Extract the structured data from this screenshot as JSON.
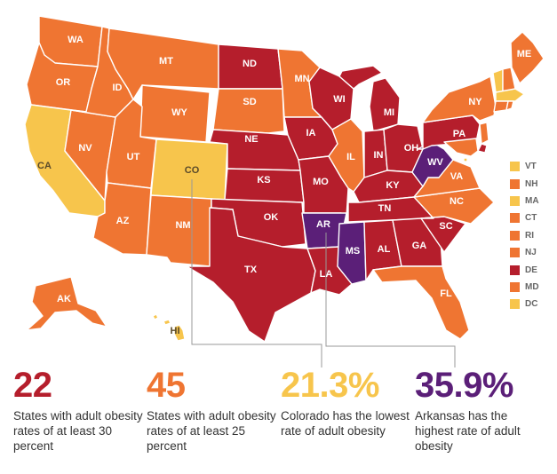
{
  "colors": {
    "tier_highest": "#5b1f78",
    "tier_30_plus": "#b51e2c",
    "tier_25_plus": "#ef7532",
    "tier_under_25": "#f7c54c",
    "connector": "#999999"
  },
  "states": [
    {
      "abbr": "WA",
      "tier": "tier_25_plus"
    },
    {
      "abbr": "OR",
      "tier": "tier_25_plus"
    },
    {
      "abbr": "CA",
      "tier": "tier_under_25"
    },
    {
      "abbr": "NV",
      "tier": "tier_25_plus"
    },
    {
      "abbr": "ID",
      "tier": "tier_25_plus"
    },
    {
      "abbr": "MT",
      "tier": "tier_25_plus"
    },
    {
      "abbr": "WY",
      "tier": "tier_25_plus"
    },
    {
      "abbr": "UT",
      "tier": "tier_25_plus"
    },
    {
      "abbr": "AZ",
      "tier": "tier_25_plus"
    },
    {
      "abbr": "CO",
      "tier": "tier_under_25"
    },
    {
      "abbr": "NM",
      "tier": "tier_25_plus"
    },
    {
      "abbr": "ND",
      "tier": "tier_30_plus"
    },
    {
      "abbr": "SD",
      "tier": "tier_25_plus"
    },
    {
      "abbr": "NE",
      "tier": "tier_30_plus"
    },
    {
      "abbr": "KS",
      "tier": "tier_30_plus"
    },
    {
      "abbr": "OK",
      "tier": "tier_30_plus"
    },
    {
      "abbr": "TX",
      "tier": "tier_30_plus"
    },
    {
      "abbr": "MN",
      "tier": "tier_25_plus"
    },
    {
      "abbr": "IA",
      "tier": "tier_30_plus"
    },
    {
      "abbr": "MO",
      "tier": "tier_30_plus"
    },
    {
      "abbr": "AR",
      "tier": "tier_highest"
    },
    {
      "abbr": "LA",
      "tier": "tier_30_plus"
    },
    {
      "abbr": "WI",
      "tier": "tier_30_plus"
    },
    {
      "abbr": "IL",
      "tier": "tier_25_plus"
    },
    {
      "abbr": "MI",
      "tier": "tier_30_plus"
    },
    {
      "abbr": "IN",
      "tier": "tier_30_plus"
    },
    {
      "abbr": "OH",
      "tier": "tier_30_plus"
    },
    {
      "abbr": "KY",
      "tier": "tier_30_plus"
    },
    {
      "abbr": "TN",
      "tier": "tier_30_plus"
    },
    {
      "abbr": "MS",
      "tier": "tier_highest"
    },
    {
      "abbr": "AL",
      "tier": "tier_30_plus"
    },
    {
      "abbr": "GA",
      "tier": "tier_30_plus"
    },
    {
      "abbr": "FL",
      "tier": "tier_25_plus"
    },
    {
      "abbr": "SC",
      "tier": "tier_30_plus"
    },
    {
      "abbr": "NC",
      "tier": "tier_25_plus"
    },
    {
      "abbr": "VA",
      "tier": "tier_25_plus"
    },
    {
      "abbr": "WV",
      "tier": "tier_highest"
    },
    {
      "abbr": "PA",
      "tier": "tier_30_plus"
    },
    {
      "abbr": "NY",
      "tier": "tier_25_plus"
    },
    {
      "abbr": "ME",
      "tier": "tier_25_plus"
    },
    {
      "abbr": "AK",
      "tier": "tier_25_plus"
    },
    {
      "abbr": "HI",
      "tier": "tier_under_25"
    }
  ],
  "legend": [
    {
      "abbr": "VT",
      "tier": "tier_under_25"
    },
    {
      "abbr": "NH",
      "tier": "tier_25_plus"
    },
    {
      "abbr": "MA",
      "tier": "tier_under_25"
    },
    {
      "abbr": "CT",
      "tier": "tier_25_plus"
    },
    {
      "abbr": "RI",
      "tier": "tier_25_plus"
    },
    {
      "abbr": "NJ",
      "tier": "tier_25_plus"
    },
    {
      "abbr": "DE",
      "tier": "tier_30_plus"
    },
    {
      "abbr": "MD",
      "tier": "tier_25_plus"
    },
    {
      "abbr": "DC",
      "tier": "tier_under_25"
    }
  ],
  "stats": [
    {
      "number": "22",
      "color": "#b51e2c",
      "text": "States with adult obesity rates of at least 30 percent"
    },
    {
      "number": "45",
      "color": "#ef7532",
      "text": "States with adult obesity rates of at least 25 percent"
    },
    {
      "number": "21.3%",
      "color": "#f7c54c",
      "text": "Colorado has the lowest rate of adult obesity"
    },
    {
      "number": "35.9%",
      "color": "#5b1f78",
      "text": "Arkansas has the highest rate of adult obesity"
    }
  ]
}
